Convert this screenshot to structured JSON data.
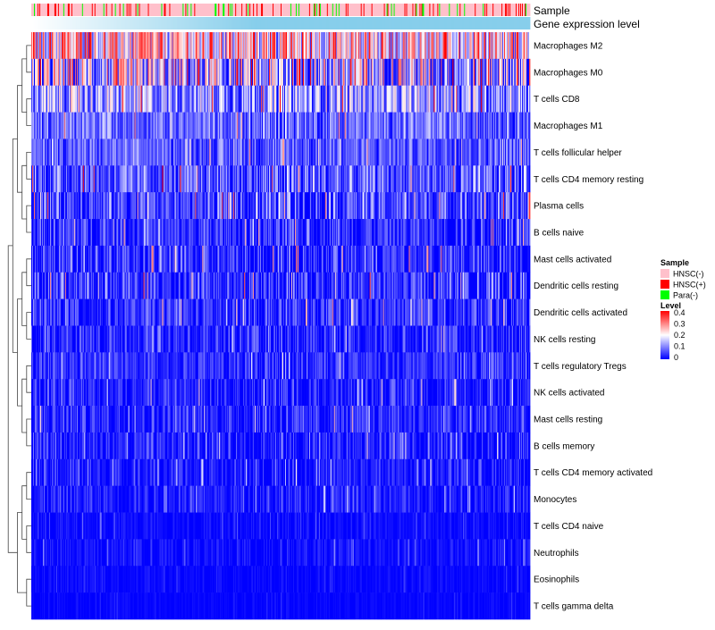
{
  "chart_data": {
    "type": "heatmap",
    "title": "",
    "annotation_tracks": [
      "Sample",
      "Gene expression level"
    ],
    "rows": [
      {
        "label": "Macrophages M2",
        "mean": 0.22,
        "spread": 0.16
      },
      {
        "label": "Macrophages M0",
        "mean": 0.14,
        "spread": 0.2
      },
      {
        "label": "T cells CD8",
        "mean": 0.12,
        "spread": 0.12
      },
      {
        "label": "Macrophages M1",
        "mean": 0.08,
        "spread": 0.08
      },
      {
        "label": "T cells follicular helper",
        "mean": 0.07,
        "spread": 0.07
      },
      {
        "label": "T cells CD4 memory resting",
        "mean": 0.06,
        "spread": 0.11
      },
      {
        "label": "Plasma cells",
        "mean": 0.05,
        "spread": 0.1
      },
      {
        "label": "B cells naive",
        "mean": 0.035,
        "spread": 0.08
      },
      {
        "label": "Mast cells activated",
        "mean": 0.03,
        "spread": 0.09
      },
      {
        "label": "Dendritic cells resting",
        "mean": 0.03,
        "spread": 0.1
      },
      {
        "label": "Dendritic cells activated",
        "mean": 0.028,
        "spread": 0.08
      },
      {
        "label": "NK cells resting",
        "mean": 0.025,
        "spread": 0.07
      },
      {
        "label": "T cells regulatory  Tregs",
        "mean": 0.035,
        "spread": 0.06
      },
      {
        "label": "NK cells activated",
        "mean": 0.02,
        "spread": 0.07
      },
      {
        "label": "Mast cells resting",
        "mean": 0.025,
        "spread": 0.07
      },
      {
        "label": "B cells memory",
        "mean": 0.015,
        "spread": 0.07
      },
      {
        "label": "T cells CD4 memory activated",
        "mean": 0.015,
        "spread": 0.06
      },
      {
        "label": "Monocytes",
        "mean": 0.02,
        "spread": 0.05
      },
      {
        "label": "T cells CD4 naive",
        "mean": 0.005,
        "spread": 0.03
      },
      {
        "label": "Neutrophils",
        "mean": 0.006,
        "spread": 0.035
      },
      {
        "label": "Eosinophils",
        "mean": 0.003,
        "spread": 0.02
      },
      {
        "label": "T cells gamma delta",
        "mean": 0.002,
        "spread": 0.015
      }
    ],
    "n_samples": 560,
    "sample_groups": [
      {
        "name": "HNSC(-)",
        "color": "#FFC0CB",
        "fraction": 0.8
      },
      {
        "name": "HNSC(+)",
        "color": "#FF0000",
        "fraction": 0.12
      },
      {
        "name": "Para(-)",
        "color": "#00FF00",
        "fraction": 0.08
      }
    ],
    "gene_expression_color_start": "#FFFFFF",
    "gene_expression_color_end": "#87CEEB",
    "color_scale": {
      "min": 0,
      "max": 0.4,
      "low_color": "#0000FF",
      "mid_color": "#FFFFFF",
      "high_color": "#FF0000",
      "mid_value": 0.2
    },
    "legend": {
      "sample_title": "Sample",
      "level_title": "Level",
      "level_ticks": [
        "0.4",
        "0.3",
        "0.2",
        "0.1",
        "0"
      ],
      "position": "right"
    },
    "dendrogram": "rows-left"
  }
}
